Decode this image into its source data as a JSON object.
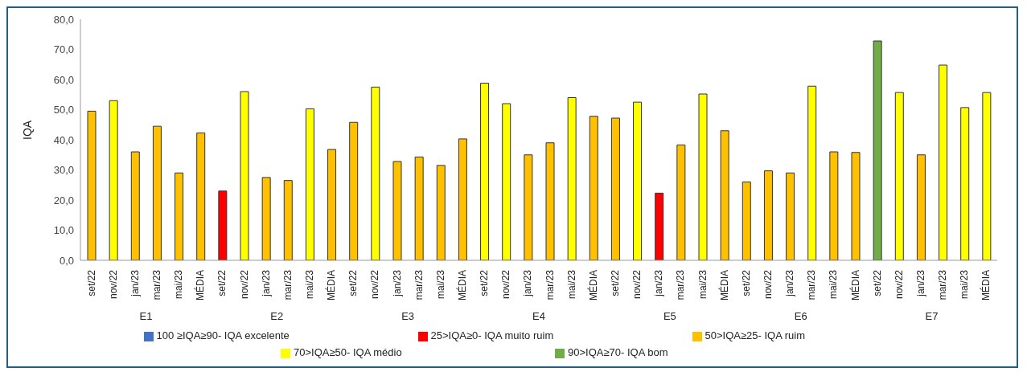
{
  "chart_data": {
    "type": "bar",
    "ylabel": "IQA",
    "stacked": true,
    "legend": "bottom",
    "grid": false,
    "categories": [
      "set/22",
      "nov/22",
      "jan/23",
      "mar/23",
      "mai/23",
      "MÉDIA",
      "set/22",
      "nov/22",
      "jan/23",
      "mar/23",
      "mai/23",
      "MÉDIA",
      "set/22",
      "nov/22",
      "jan/23",
      "mar/23",
      "mai/23",
      "MÉDIA",
      "set/22",
      "nov/22",
      "jan/23",
      "mar/23",
      "mai/23",
      "MÉDIA",
      "set/22",
      "nov/22",
      "jan/23",
      "mar/23",
      "mai/23",
      "MÉDIA",
      "set/22",
      "nov/22",
      "jan/23",
      "mar/23",
      "mai/23",
      "MÉDIA",
      "set/22",
      "nov/22",
      "jan/23",
      "mar/23",
      "mai/23",
      "MÉDIA"
    ],
    "annotations": [
      "E1",
      "E2",
      "E3",
      "E4",
      "E5",
      "E6",
      "E7"
    ],
    "ylim": [
      0,
      80
    ],
    "yticks": [
      {
        "value": 0,
        "label": "0,0"
      },
      {
        "value": 10,
        "label": "10,0"
      },
      {
        "value": 20,
        "label": "20,0"
      },
      {
        "value": 30,
        "label": "30,0"
      },
      {
        "value": 40,
        "label": "40,0"
      },
      {
        "value": 50,
        "label": "50,0"
      },
      {
        "value": 60,
        "label": "60,0"
      },
      {
        "value": 70,
        "label": "70,0"
      },
      {
        "value": 80,
        "label": "80,0"
      }
    ],
    "series": [
      {
        "name": "100 ≥IQA≥90- IQA excelente",
        "color": "#4472c4",
        "values": [
          null,
          null,
          null,
          null,
          null,
          null,
          null,
          null,
          null,
          null,
          null,
          null,
          null,
          null,
          null,
          null,
          null,
          null,
          null,
          null,
          null,
          null,
          null,
          null,
          null,
          null,
          null,
          null,
          null,
          null,
          null,
          null,
          null,
          null,
          null,
          null,
          null,
          null,
          null,
          null,
          null,
          null
        ]
      },
      {
        "name": "90>IQA≥70- IQA bom",
        "color": "#70ad47",
        "values": [
          null,
          null,
          null,
          null,
          null,
          null,
          null,
          null,
          null,
          null,
          null,
          null,
          null,
          null,
          null,
          null,
          null,
          null,
          null,
          null,
          null,
          null,
          null,
          null,
          null,
          null,
          null,
          null,
          null,
          null,
          null,
          null,
          null,
          null,
          null,
          null,
          72.8,
          null,
          null,
          null,
          null,
          null
        ]
      },
      {
        "name": "70>IQA≥50- IQA médio",
        "color": "#ffff00",
        "values": [
          null,
          53,
          null,
          null,
          null,
          null,
          null,
          56,
          null,
          null,
          50.3,
          null,
          null,
          57.5,
          null,
          null,
          null,
          null,
          58.8,
          52,
          null,
          null,
          54,
          null,
          null,
          52.5,
          null,
          null,
          55.2,
          null,
          null,
          null,
          null,
          57.8,
          null,
          null,
          null,
          55.7,
          null,
          64.8,
          50.7,
          55.7
        ]
      },
      {
        "name": "50>IQA≥25- IQA ruim",
        "color": "#ffc000",
        "values": [
          49.5,
          null,
          36,
          44.5,
          29,
          42.3,
          null,
          null,
          27.5,
          26.5,
          null,
          36.8,
          45.8,
          null,
          32.8,
          34.3,
          31.5,
          40.3,
          null,
          null,
          35,
          39,
          null,
          47.8,
          47.2,
          null,
          null,
          38.3,
          null,
          43,
          26,
          29.7,
          29,
          null,
          36,
          35.8,
          null,
          null,
          35,
          null,
          null,
          null
        ]
      },
      {
        "name": "25>IQA≥0- IQA  muito ruim",
        "color": "#ff0000",
        "values": [
          null,
          null,
          null,
          null,
          null,
          null,
          23,
          null,
          null,
          null,
          null,
          null,
          null,
          null,
          null,
          null,
          null,
          null,
          null,
          null,
          null,
          null,
          null,
          null,
          null,
          null,
          22.3,
          null,
          null,
          null,
          null,
          null,
          null,
          null,
          null,
          null,
          null,
          null,
          null,
          null,
          null,
          null
        ]
      }
    ]
  }
}
